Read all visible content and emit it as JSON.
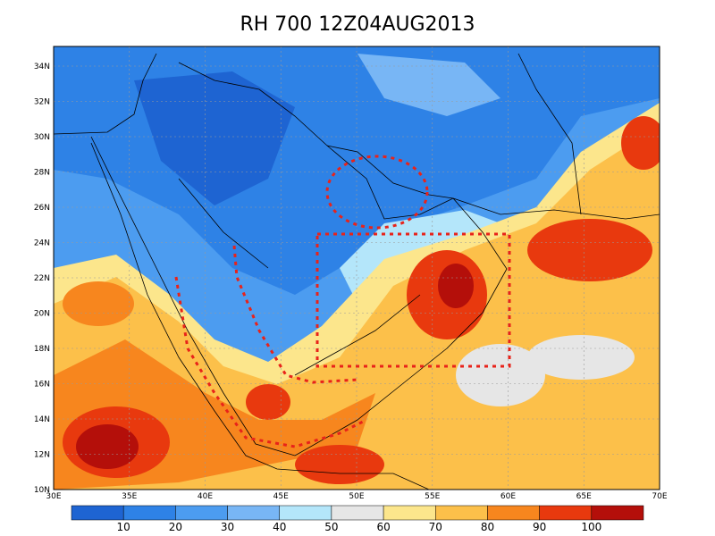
{
  "title": "RH 700 12Z04AUG2013",
  "map": {
    "lat_labels": [
      "10N",
      "12N",
      "14N",
      "16N",
      "18N",
      "20N",
      "22N",
      "24N",
      "26N",
      "28N",
      "30N",
      "32N",
      "34N"
    ],
    "lon_labels": [
      "30E",
      "35E",
      "40E",
      "45E",
      "50E",
      "55E",
      "60E",
      "65E",
      "70E"
    ]
  },
  "colorbar": {
    "levels": [
      "10",
      "20",
      "30",
      "40",
      "50",
      "60",
      "70",
      "80",
      "90",
      "100"
    ],
    "colors": [
      "#1e64d2",
      "#2e82e6",
      "#4c9cf0",
      "#78b6f5",
      "#b4e6fa",
      "#e6e6e6",
      "#fce68c",
      "#fcc04a",
      "#f7861e",
      "#e8390e",
      "#b40f0a"
    ]
  }
}
